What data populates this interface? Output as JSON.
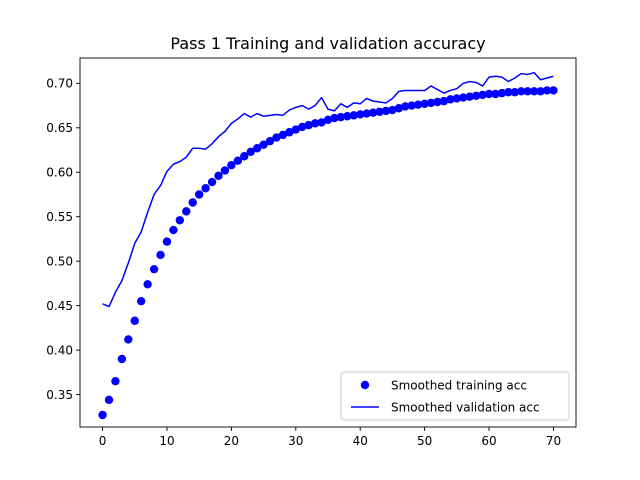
{
  "chart_data": {
    "type": "line",
    "title": "Pass 1 Training and validation accuracy",
    "xlabel": "",
    "ylabel": "",
    "xlim": [
      -3.5,
      73.5
    ],
    "ylim": [
      0.3135,
      0.7285
    ],
    "xticks": [
      0,
      10,
      20,
      30,
      40,
      50,
      60,
      70
    ],
    "yticks": [
      0.35,
      0.4,
      0.45,
      0.5,
      0.55,
      0.6,
      0.65,
      0.7
    ],
    "grid": false,
    "legend_position": "lower-right",
    "series": [
      {
        "name": "Smoothed training acc",
        "style": "markers",
        "color": "#0000ff",
        "x": [
          0,
          1,
          2,
          3,
          4,
          5,
          6,
          7,
          8,
          9,
          10,
          11,
          12,
          13,
          14,
          15,
          16,
          17,
          18,
          19,
          20,
          21,
          22,
          23,
          24,
          25,
          26,
          27,
          28,
          29,
          30,
          31,
          32,
          33,
          34,
          35,
          36,
          37,
          38,
          39,
          40,
          41,
          42,
          43,
          44,
          45,
          46,
          47,
          48,
          49,
          50,
          51,
          52,
          53,
          54,
          55,
          56,
          57,
          58,
          59,
          60,
          61,
          62,
          63,
          64,
          65,
          66,
          67,
          68,
          69,
          70
        ],
        "values": [
          0.327,
          0.344,
          0.365,
          0.39,
          0.412,
          0.433,
          0.455,
          0.474,
          0.491,
          0.507,
          0.522,
          0.535,
          0.546,
          0.556,
          0.566,
          0.575,
          0.582,
          0.589,
          0.596,
          0.602,
          0.608,
          0.613,
          0.618,
          0.623,
          0.627,
          0.631,
          0.635,
          0.639,
          0.642,
          0.645,
          0.648,
          0.651,
          0.653,
          0.655,
          0.656,
          0.659,
          0.661,
          0.662,
          0.663,
          0.664,
          0.665,
          0.666,
          0.667,
          0.668,
          0.669,
          0.67,
          0.672,
          0.674,
          0.675,
          0.676,
          0.677,
          0.678,
          0.679,
          0.68,
          0.682,
          0.683,
          0.684,
          0.685,
          0.686,
          0.687,
          0.688,
          0.688,
          0.689,
          0.69,
          0.69,
          0.691,
          0.691,
          0.691,
          0.691,
          0.692,
          0.692
        ]
      },
      {
        "name": "Smoothed validation acc",
        "style": "line",
        "color": "#0000ff",
        "x": [
          0,
          1,
          2,
          3,
          4,
          5,
          6,
          7,
          8,
          9,
          10,
          11,
          12,
          13,
          14,
          15,
          16,
          17,
          18,
          19,
          20,
          21,
          22,
          23,
          24,
          25,
          26,
          27,
          28,
          29,
          30,
          31,
          32,
          33,
          34,
          35,
          36,
          37,
          38,
          39,
          40,
          41,
          42,
          43,
          44,
          45,
          46,
          47,
          48,
          49,
          50,
          51,
          52,
          53,
          54,
          55,
          56,
          57,
          58,
          59,
          60,
          61,
          62,
          63,
          64,
          65,
          66,
          67,
          68,
          69,
          70
        ],
        "values": [
          0.452,
          0.449,
          0.465,
          0.478,
          0.498,
          0.52,
          0.533,
          0.555,
          0.575,
          0.585,
          0.601,
          0.609,
          0.612,
          0.617,
          0.627,
          0.627,
          0.626,
          0.632,
          0.64,
          0.646,
          0.655,
          0.66,
          0.666,
          0.662,
          0.666,
          0.663,
          0.664,
          0.665,
          0.664,
          0.67,
          0.673,
          0.675,
          0.671,
          0.675,
          0.684,
          0.671,
          0.669,
          0.677,
          0.673,
          0.678,
          0.677,
          0.683,
          0.68,
          0.679,
          0.678,
          0.683,
          0.691,
          0.692,
          0.692,
          0.692,
          0.692,
          0.697,
          0.693,
          0.689,
          0.692,
          0.694,
          0.7,
          0.702,
          0.701,
          0.697,
          0.707,
          0.708,
          0.707,
          0.702,
          0.706,
          0.711,
          0.71,
          0.712,
          0.704,
          0.706,
          0.708
        ]
      }
    ]
  }
}
